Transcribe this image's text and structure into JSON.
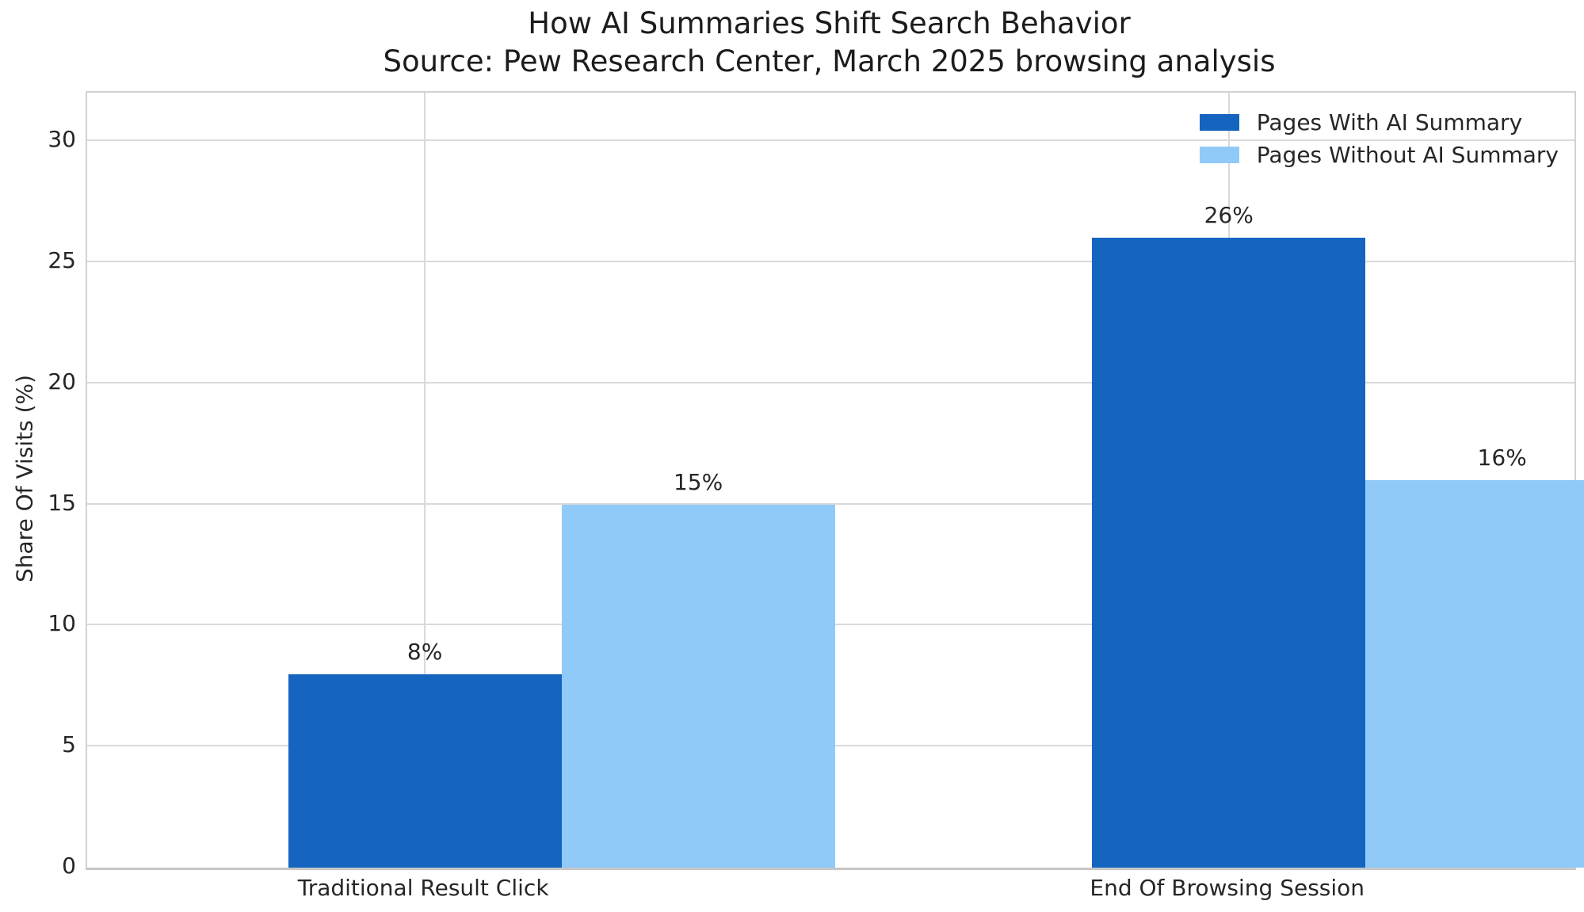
{
  "chart_data": {
    "type": "bar",
    "title": "How AI Summaries Shift Search Behavior",
    "subtitle": "Source: Pew Research Center, March 2025 browsing analysis",
    "categories": [
      "Traditional Result Click",
      "End Of Browsing Session"
    ],
    "series": [
      {
        "name": "Pages With AI Summary",
        "color": "#1565C0",
        "values": [
          8,
          26
        ],
        "labels": [
          "8%",
          "26%"
        ]
      },
      {
        "name": "Pages Without AI Summary",
        "color": "#90CAF9",
        "values": [
          15,
          16
        ],
        "labels": [
          "15%",
          "16%"
        ]
      }
    ],
    "xlabel": "",
    "ylabel": "Share Of Visits (%)",
    "ylim": [
      0,
      32
    ],
    "yticks": [
      0,
      5,
      10,
      15,
      20,
      25,
      30
    ],
    "xlim": [
      -0.42,
      1.43
    ],
    "bar_width": 0.34,
    "grid": true,
    "legend_position": "upper right"
  },
  "colors": {
    "background": "#ffffff",
    "grid": "#d9d9d9",
    "spine": "#d2d2d2",
    "text": "#262626",
    "title_text": "#1c1c1c"
  }
}
